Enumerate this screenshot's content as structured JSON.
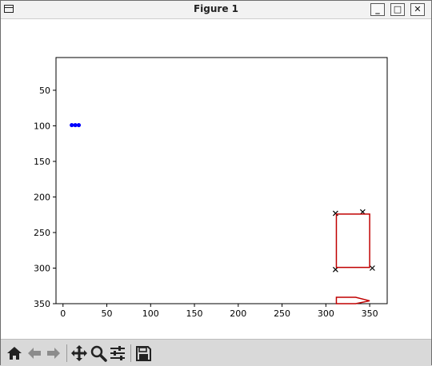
{
  "window": {
    "title": "Figure 1",
    "buttons": {
      "minimize": "_",
      "maximize": "□",
      "close": "✕"
    }
  },
  "toolbar": {
    "icons": [
      "home-icon",
      "back-icon",
      "forward-icon",
      "pan-icon",
      "zoom-icon",
      "configure-subplots-icon",
      "save-icon"
    ]
  },
  "chart_data": {
    "type": "scatter",
    "title": "",
    "xlabel": "",
    "ylabel": "",
    "xlim": [
      -8,
      370
    ],
    "ylim": [
      350,
      4
    ],
    "y_inverted": true,
    "xticks": [
      0,
      50,
      100,
      150,
      200,
      250,
      300,
      350
    ],
    "yticks": [
      50,
      100,
      150,
      200,
      250,
      300,
      350
    ],
    "grid": false,
    "series": [
      {
        "marker": "dot",
        "color": "#0000ff",
        "points": [
          [
            10,
            99
          ],
          [
            14,
            99
          ],
          [
            18,
            99
          ]
        ]
      },
      {
        "marker": "x",
        "color": "#000000",
        "points": [
          [
            311,
            223
          ],
          [
            342,
            221
          ],
          [
            311,
            302
          ],
          [
            353,
            300
          ]
        ]
      },
      {
        "marker": "line",
        "color": "#c00000",
        "closed": true,
        "points": [
          [
            312,
            224
          ],
          [
            350,
            224
          ],
          [
            350,
            299
          ],
          [
            312,
            299
          ]
        ]
      },
      {
        "marker": "line",
        "color": "#c00000",
        "closed": true,
        "points": [
          [
            312,
            350
          ],
          [
            312,
            341
          ],
          [
            334,
            341
          ],
          [
            350,
            346
          ],
          [
            334,
            350
          ]
        ]
      }
    ]
  }
}
